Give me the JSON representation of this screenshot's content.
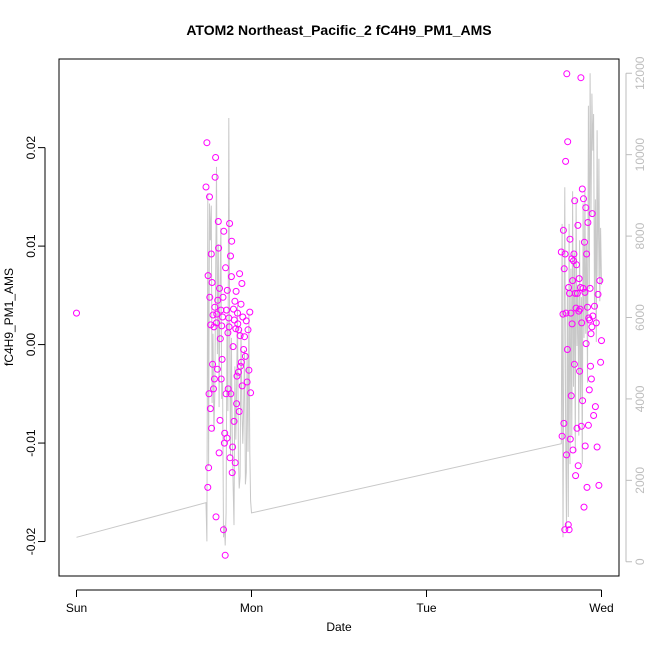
{
  "chart_data": {
    "type": "scatter",
    "title": "ATOM2 Northeast_Pacific_2 fC4H9_PM1_AMS",
    "xlabel": "Date",
    "ylabel": "fC4H9_PM1_AMS",
    "x_ticks": [
      "Sun",
      "Mon",
      "Tue",
      "Wed"
    ],
    "x_range_days": [
      -0.1,
      3.1
    ],
    "ylim": [
      -0.0235,
      0.029
    ],
    "y_ticks": [
      -0.02,
      -0.01,
      0.0,
      0.01,
      0.02
    ],
    "y_tick_labels": [
      "-0.02",
      "-0.01",
      "0.00",
      "0.01",
      "0.02"
    ],
    "y2lim": [
      -350,
      12350
    ],
    "y2_ticks": [
      0,
      2000,
      4000,
      6000,
      8000,
      10000,
      12000
    ],
    "y2_tick_labels": [
      "0",
      "2000",
      "4000",
      "6000",
      "8000",
      "10000",
      "12000"
    ],
    "colors": {
      "points": "#ff00ff",
      "line": "#c8c8c8",
      "axis": "#000000",
      "right_axis": "#bdbdbd"
    },
    "series": [
      {
        "kind": "points",
        "x": [
          0.0,
          0.74,
          0.745,
          0.75,
          0.752,
          0.755,
          0.757,
          0.76,
          0.762,
          0.765,
          0.767,
          0.77,
          0.772,
          0.775,
          0.778,
          0.78,
          0.783,
          0.786,
          0.788,
          0.79,
          0.792,
          0.795,
          0.797,
          0.8,
          0.802,
          0.805,
          0.807,
          0.81,
          0.812,
          0.815,
          0.817,
          0.82,
          0.822,
          0.825,
          0.827,
          0.83,
          0.832,
          0.835,
          0.837,
          0.84,
          0.842,
          0.845,
          0.847,
          0.85,
          0.852,
          0.855,
          0.857,
          0.86,
          0.862,
          0.865,
          0.867,
          0.87,
          0.872,
          0.875,
          0.877,
          0.88,
          0.882,
          0.885,
          0.887,
          0.89,
          0.892,
          0.895,
          0.897,
          0.9,
          0.902,
          0.905,
          0.907,
          0.91,
          0.912,
          0.915,
          0.917,
          0.92,
          0.922,
          0.925,
          0.927,
          0.93,
          0.932,
          0.935,
          0.937,
          0.94,
          0.942,
          0.945,
          0.947,
          0.95,
          0.955,
          0.96,
          0.965,
          0.97,
          0.975,
          0.98,
          0.985,
          0.99,
          0.995,
          2.77,
          2.775,
          2.78,
          2.782,
          2.785,
          2.787,
          2.79,
          2.792,
          2.795,
          2.797,
          2.8,
          2.802,
          2.805,
          2.807,
          2.81,
          2.812,
          2.815,
          2.817,
          2.82,
          2.822,
          2.825,
          2.827,
          2.83,
          2.832,
          2.835,
          2.837,
          2.84,
          2.842,
          2.845,
          2.847,
          2.85,
          2.852,
          2.855,
          2.857,
          2.86,
          2.862,
          2.865,
          2.867,
          2.87,
          2.872,
          2.875,
          2.877,
          2.88,
          2.882,
          2.885,
          2.887,
          2.89,
          2.892,
          2.895,
          2.897,
          2.9,
          2.902,
          2.905,
          2.907,
          2.91,
          2.912,
          2.915,
          2.917,
          2.92,
          2.922,
          2.925,
          2.927,
          2.93,
          2.932,
          2.935,
          2.937,
          2.94,
          2.942,
          2.945,
          2.947,
          2.95,
          2.955,
          2.96,
          2.965,
          2.97,
          2.975,
          2.98,
          2.985,
          2.99,
          2.995,
          3.0
        ],
        "y": [
          0.0032,
          0.016,
          0.0205,
          -0.0145,
          0.007,
          -0.0125,
          -0.005,
          0.015,
          0.0048,
          -0.0065,
          0.002,
          0.0092,
          -0.0085,
          0.0063,
          -0.002,
          0.003,
          -0.0045,
          0.0018,
          -0.0035,
          0.0038,
          0.017,
          0.019,
          -0.0175,
          0.0022,
          0.0031,
          -0.0025,
          0.0045,
          0.0125,
          0.0098,
          -0.011,
          0.0057,
          -0.0077,
          0.0006,
          0.0035,
          -0.0035,
          0.0019,
          -0.0015,
          0.0028,
          0.0048,
          -0.0188,
          0.0115,
          -0.01,
          -0.009,
          -0.0214,
          0.0078,
          -0.005,
          0.0035,
          -0.0095,
          0.0055,
          0.0012,
          -0.0045,
          0.0027,
          0.0018,
          0.0123,
          -0.0115,
          0.009,
          -0.005,
          0.0069,
          0.0105,
          -0.013,
          -0.0104,
          -0.0002,
          0.0036,
          -0.0078,
          0.0025,
          0.0044,
          -0.012,
          0.0016,
          0.0054,
          -0.006,
          -0.0032,
          0.0032,
          0.0021,
          -0.0028,
          0.0015,
          -0.0068,
          0.0072,
          0.0009,
          -0.0022,
          0.0041,
          -0.0018,
          0.0062,
          -0.0042,
          0.0028,
          -0.0005,
          0.0008,
          -0.0012,
          0.0024,
          -0.0038,
          0.0015,
          -0.0026,
          0.0033,
          -0.0049,
          0.0094,
          -0.0093,
          0.0031,
          0.0116,
          -0.008,
          0.0077,
          -0.0188,
          0.0092,
          0.0186,
          0.0032,
          -0.0112,
          0.0275,
          -0.0005,
          0.0206,
          -0.0183,
          0.0058,
          -0.0188,
          0.0052,
          0.0107,
          -0.0096,
          0.0032,
          -0.0052,
          0.0087,
          0.0021,
          0.0065,
          -0.0107,
          0.0085,
          0.0092,
          -0.002,
          0.0146,
          0.0052,
          -0.0133,
          0.0037,
          0.0081,
          -0.0085,
          0.0052,
          0.0121,
          -0.0123,
          0.0034,
          0.0067,
          -0.0027,
          0.0036,
          0.0058,
          0.0271,
          -0.0083,
          0.0022,
          0.0158,
          -0.0057,
          0.0057,
          0.0148,
          -0.0165,
          0.0104,
          0.0053,
          -0.0103,
          0.0139,
          0.0001,
          0.0092,
          -0.0145,
          0.0038,
          0.0124,
          -0.0082,
          0.0027,
          -0.0046,
          0.0025,
          0.0057,
          -0.0022,
          0.0011,
          -0.0035,
          0.0018,
          0.0133,
          0.0029,
          -0.0072,
          0.0039,
          -0.0063,
          0.0022,
          -0.0104,
          0.0051,
          -0.0143,
          0.0065,
          -0.0018,
          0.0004
        ]
      },
      {
        "kind": "line",
        "x": [
          0.0,
          0.74,
          0.745,
          0.75,
          0.755,
          0.76,
          0.765,
          0.77,
          0.775,
          0.78,
          0.785,
          0.79,
          0.795,
          0.8,
          0.805,
          0.81,
          0.815,
          0.82,
          0.825,
          0.83,
          0.835,
          0.84,
          0.845,
          0.85,
          0.855,
          0.86,
          0.865,
          0.87,
          0.875,
          0.88,
          0.885,
          0.89,
          0.895,
          0.9,
          0.905,
          0.91,
          0.915,
          0.92,
          0.925,
          0.93,
          0.935,
          0.94,
          0.945,
          0.95,
          0.955,
          0.96,
          0.965,
          0.97,
          0.975,
          0.98,
          0.985,
          0.99,
          0.995,
          1.0,
          2.77,
          2.775,
          2.78,
          2.785,
          2.79,
          2.795,
          2.8,
          2.805,
          2.81,
          2.815,
          2.82,
          2.825,
          2.83,
          2.835,
          2.84,
          2.845,
          2.85,
          2.855,
          2.86,
          2.865,
          2.87,
          2.875,
          2.88,
          2.885,
          2.89,
          2.895,
          2.9,
          2.905,
          2.91,
          2.915,
          2.92,
          2.925,
          2.93,
          2.935,
          2.94,
          2.945,
          2.95,
          2.955,
          2.96,
          2.965,
          2.97,
          2.975,
          2.98,
          2.985,
          2.99,
          2.995,
          3.0
        ],
        "y2": [
          600,
          1450,
          500,
          9050,
          2350,
          8800,
          7900,
          8750,
          3900,
          5600,
          3200,
          4100,
          6800,
          9700,
          5100,
          7800,
          3800,
          6700,
          8200,
          4000,
          4400,
          600,
          900,
          400,
          1200,
          5900,
          3700,
          10900,
          6000,
          2600,
          5500,
          3200,
          1900,
          900,
          4800,
          3000,
          4200,
          6300,
          2600,
          1800,
          2100,
          5700,
          3800,
          2900,
          3700,
          5200,
          1900,
          2200,
          5100,
          2700,
          6100,
          2700,
          1500,
          1200,
          2900,
          8300,
          600,
          5500,
          9200,
          3300,
          800,
          6700,
          1100,
          8300,
          2400,
          7200,
          3100,
          9100,
          4300,
          7600,
          2700,
          8900,
          5300,
          6800,
          3100,
          7900,
          4000,
          6500,
          2400,
          8800,
          5500,
          9100,
          5600,
          7800,
          4400,
          11200,
          6700,
          12000,
          8500,
          11500,
          10100,
          11000,
          6200,
          8900,
          5400,
          10600,
          7000,
          9900,
          6400,
          8200,
          6800,
          9600
        ]
      }
    ]
  }
}
